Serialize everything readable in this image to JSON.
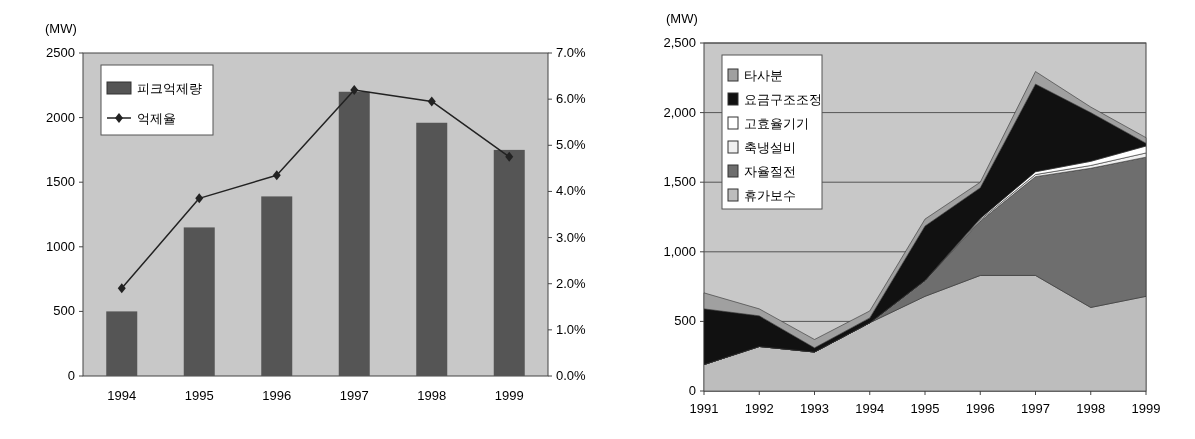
{
  "chart_data": [
    {
      "type": "bar",
      "ylabel": "(MW)",
      "categories": [
        "1994",
        "1995",
        "1996",
        "1997",
        "1998",
        "1999"
      ],
      "series": [
        {
          "name": "피크억제량",
          "color": "#555555",
          "values": [
            500,
            1150,
            1390,
            2200,
            1960,
            1750
          ]
        },
        {
          "name": "억제율",
          "type": "line",
          "axis": "y2",
          "color": "#222222",
          "values": [
            1.9,
            3.85,
            4.35,
            6.2,
            5.95,
            4.75
          ]
        }
      ],
      "ylim": [
        0,
        2500
      ],
      "yticks": [
        0,
        500,
        1000,
        1500,
        2000,
        2500
      ],
      "y2lim": [
        0,
        7
      ],
      "y2ticks": [
        {
          "value": 0,
          "label": "0.0%"
        },
        {
          "value": 1,
          "label": "1.0%"
        },
        {
          "value": 2,
          "label": "2.0%"
        },
        {
          "value": 3,
          "label": "3.0%"
        },
        {
          "value": 4,
          "label": "4.0%"
        },
        {
          "value": 5,
          "label": "5.0%"
        },
        {
          "value": 6,
          "label": "6.0%"
        },
        {
          "value": 7,
          "label": "7.0%"
        }
      ],
      "marker": "diamond",
      "legend": "top left",
      "grid": false
    },
    {
      "type": "area",
      "stacked": true,
      "ylabel": "(MW)",
      "x": [
        1991,
        1992,
        1993,
        1994,
        1995,
        1996,
        1997,
        1998,
        1999
      ],
      "series": [
        {
          "name": "휴가보수",
          "color": "#bdbdbd",
          "values": [
            190,
            320,
            280,
            490,
            680,
            830,
            830,
            600,
            680
          ]
        },
        {
          "name": "자율절전",
          "color": "#6e6e6e",
          "values": [
            0,
            0,
            0,
            0,
            115,
            390,
            710,
            1000,
            1000
          ]
        },
        {
          "name": "축냉설비",
          "color": "#f0f0f0",
          "values": [
            0,
            0,
            0,
            0,
            0,
            10,
            15,
            20,
            30
          ]
        },
        {
          "name": "고효율기기",
          "color": "#ffffff",
          "values": [
            0,
            0,
            0,
            0,
            0,
            10,
            20,
            30,
            50
          ]
        },
        {
          "name": "요금구조조정",
          "color": "#111111",
          "values": [
            400,
            220,
            30,
            35,
            390,
            220,
            630,
            350,
            20
          ]
        },
        {
          "name": "타사분",
          "color": "#a0a0a0",
          "values": [
            115,
            50,
            60,
            50,
            50,
            40,
            90,
            40,
            40
          ]
        }
      ],
      "xlim": [
        1991,
        1999
      ],
      "xticks": [
        1991,
        1992,
        1993,
        1994,
        1995,
        1996,
        1997,
        1998,
        1999
      ],
      "ylim": [
        0,
        2500
      ],
      "yticks": [
        0,
        500,
        {
          "value": 1000,
          "label": "1,000"
        },
        {
          "value": 1500,
          "label": "1,500"
        },
        {
          "value": 2000,
          "label": "2,000"
        },
        {
          "value": 2500,
          "label": "2,500"
        }
      ],
      "legend": "top left",
      "grid": "y"
    }
  ]
}
